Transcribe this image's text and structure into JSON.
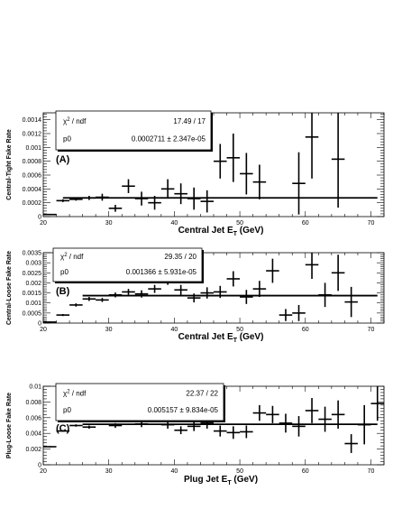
{
  "chart_data": [
    {
      "type": "scatter",
      "panel_tag": "(A)",
      "ylabel": "Central-Tight Fake Rate",
      "xlabel_main": "Central Jet E",
      "xlabel_sub": "T",
      "xlabel_unit": " (GeV)",
      "xlim": [
        20,
        72
      ],
      "ylim": [
        0,
        0.0015
      ],
      "xticks": [
        20,
        30,
        40,
        50,
        60,
        70
      ],
      "yticks": [
        0,
        0.0002,
        0.0004,
        0.0006,
        0.0008,
        0.001,
        0.0012,
        0.0014
      ],
      "ytick_labels": [
        "0",
        "0.0002",
        "0.0004",
        "0.0006",
        "0.0008",
        "0.001",
        "0.0012",
        "0.0014"
      ],
      "fit": {
        "p0": 0.0002711,
        "x_range": [
          23,
          71
        ]
      },
      "stats": {
        "chi2_label": "χ",
        "chi2_sup": "2",
        "chi2_rest": " / ndf",
        "chi2_value": "17.49 / 17",
        "p0_label": "p0",
        "p0_value": "0.0002711  ± 2.347e-05"
      },
      "points": [
        {
          "x": 21,
          "y": 3e-05,
          "xerr": 1,
          "yerr": 1e-05
        },
        {
          "x": 23,
          "y": 0.00023,
          "xerr": 1,
          "yerr": 2e-05
        },
        {
          "x": 25,
          "y": 0.00025,
          "xerr": 1,
          "yerr": 2e-05
        },
        {
          "x": 27,
          "y": 0.00027,
          "xerr": 1,
          "yerr": 3e-05
        },
        {
          "x": 29,
          "y": 0.00028,
          "xerr": 1,
          "yerr": 5e-05
        },
        {
          "x": 31,
          "y": 0.00012,
          "xerr": 1,
          "yerr": 5e-05
        },
        {
          "x": 33,
          "y": 0.00044,
          "xerr": 1,
          "yerr": 0.0001
        },
        {
          "x": 35,
          "y": 0.00026,
          "xerr": 1,
          "yerr": 0.0001
        },
        {
          "x": 37,
          "y": 0.0002,
          "xerr": 1,
          "yerr": 0.0001
        },
        {
          "x": 39,
          "y": 0.0004,
          "xerr": 1,
          "yerr": 0.00014
        },
        {
          "x": 41,
          "y": 0.00033,
          "xerr": 1,
          "yerr": 0.00015
        },
        {
          "x": 43,
          "y": 0.00026,
          "xerr": 1,
          "yerr": 0.00016
        },
        {
          "x": 45,
          "y": 0.00022,
          "xerr": 1,
          "yerr": 0.00016
        },
        {
          "x": 47,
          "y": 0.0008,
          "xerr": 1,
          "yerr": 0.00025
        },
        {
          "x": 49,
          "y": 0.00085,
          "xerr": 1,
          "yerr": 0.00035
        },
        {
          "x": 51,
          "y": 0.00062,
          "xerr": 1,
          "yerr": 0.0003
        },
        {
          "x": 53,
          "y": 0.0005,
          "xerr": 1,
          "yerr": 0.00025
        },
        {
          "x": 59,
          "y": 0.00048,
          "xerr": 1,
          "yerr": 0.00045
        },
        {
          "x": 61,
          "y": 0.00115,
          "xerr": 1,
          "yerr": 0.0006
        },
        {
          "x": 65,
          "y": 0.00083,
          "xerr": 1,
          "yerr": 0.0007
        }
      ]
    },
    {
      "type": "scatter",
      "panel_tag": "(B)",
      "ylabel": "Central-Loose Fake Rate",
      "xlabel_main": "Central Jet E",
      "xlabel_sub": "T",
      "xlabel_unit": " (GeV)",
      "xlim": [
        20,
        72
      ],
      "ylim": [
        0,
        0.0035
      ],
      "xticks": [
        20,
        30,
        40,
        50,
        60,
        70
      ],
      "yticks": [
        0,
        0.0005,
        0.001,
        0.0015,
        0.002,
        0.0025,
        0.003,
        0.0035
      ],
      "ytick_labels": [
        "0",
        "0.0005",
        "0.001",
        "0.0015",
        "0.002",
        "0.0025",
        "0.003",
        "0.0035"
      ],
      "fit": {
        "p0": 0.001366,
        "x_range": [
          26,
          71
        ]
      },
      "stats": {
        "chi2_label": "χ",
        "chi2_sup": "2",
        "chi2_rest": " / ndf",
        "chi2_value": "29.35 / 20",
        "p0_label": "p0",
        "p0_value": "0.001366  ± 5.931e-05"
      },
      "points": [
        {
          "x": 21,
          "y": 5e-05,
          "xerr": 1,
          "yerr": 3e-05
        },
        {
          "x": 23,
          "y": 0.0004,
          "xerr": 1,
          "yerr": 5e-05
        },
        {
          "x": 25,
          "y": 0.0009,
          "xerr": 1,
          "yerr": 8e-05
        },
        {
          "x": 27,
          "y": 0.0012,
          "xerr": 1,
          "yerr": 0.0001
        },
        {
          "x": 29,
          "y": 0.00115,
          "xerr": 1,
          "yerr": 0.0001
        },
        {
          "x": 31,
          "y": 0.0014,
          "xerr": 1,
          "yerr": 0.00012
        },
        {
          "x": 33,
          "y": 0.00155,
          "xerr": 1,
          "yerr": 0.00015
        },
        {
          "x": 35,
          "y": 0.00145,
          "xerr": 1,
          "yerr": 0.00018
        },
        {
          "x": 37,
          "y": 0.0017,
          "xerr": 1,
          "yerr": 0.0002
        },
        {
          "x": 39,
          "y": 0.00215,
          "xerr": 1,
          "yerr": 0.00025
        },
        {
          "x": 41,
          "y": 0.00165,
          "xerr": 1,
          "yerr": 0.00025
        },
        {
          "x": 43,
          "y": 0.00125,
          "xerr": 1,
          "yerr": 0.00022
        },
        {
          "x": 45,
          "y": 0.0015,
          "xerr": 1,
          "yerr": 0.00028
        },
        {
          "x": 47,
          "y": 0.00155,
          "xerr": 1,
          "yerr": 0.0003
        },
        {
          "x": 49,
          "y": 0.0022,
          "xerr": 1,
          "yerr": 0.00038
        },
        {
          "x": 51,
          "y": 0.0013,
          "xerr": 1,
          "yerr": 0.00035
        },
        {
          "x": 53,
          "y": 0.0017,
          "xerr": 1,
          "yerr": 0.0004
        },
        {
          "x": 55,
          "y": 0.0026,
          "xerr": 1,
          "yerr": 0.0006
        },
        {
          "x": 57,
          "y": 0.0004,
          "xerr": 1,
          "yerr": 0.0003
        },
        {
          "x": 59,
          "y": 0.0005,
          "xerr": 1,
          "yerr": 0.0004
        },
        {
          "x": 61,
          "y": 0.0029,
          "xerr": 1,
          "yerr": 0.0007
        },
        {
          "x": 63,
          "y": 0.0014,
          "xerr": 1,
          "yerr": 0.0006
        },
        {
          "x": 65,
          "y": 0.0025,
          "xerr": 1,
          "yerr": 0.0009
        },
        {
          "x": 67,
          "y": 0.00105,
          "xerr": 1,
          "yerr": 0.00075
        }
      ]
    },
    {
      "type": "scatter",
      "panel_tag": "(C)",
      "ylabel": "Plug-Loose Fake Rate",
      "xlabel_main": "Plug Jet E",
      "xlabel_sub": "T",
      "xlabel_unit": " (GeV)",
      "xlim": [
        20,
        72
      ],
      "ylim": [
        0,
        0.01
      ],
      "xticks": [
        20,
        30,
        40,
        50,
        60,
        70
      ],
      "yticks": [
        0,
        0.002,
        0.004,
        0.006,
        0.008,
        0.01
      ],
      "ytick_labels": [
        "0",
        "0.002",
        "0.004",
        "0.006",
        "0.008",
        "0.01"
      ],
      "fit": {
        "p0": 0.005157,
        "x_range": [
          26,
          71
        ]
      },
      "stats": {
        "chi2_label": "χ",
        "chi2_sup": "2",
        "chi2_rest": " / ndf",
        "chi2_value": "22.37 / 22",
        "p0_label": "p0",
        "p0_value": "0.005157  ± 9.834e-05"
      },
      "points": [
        {
          "x": 21,
          "y": 0.0023,
          "xerr": 1,
          "yerr": 8e-05
        },
        {
          "x": 23,
          "y": 0.0043,
          "xerr": 1,
          "yerr": 0.0001
        },
        {
          "x": 25,
          "y": 0.005,
          "xerr": 1,
          "yerr": 0.00015
        },
        {
          "x": 27,
          "y": 0.0048,
          "xerr": 1,
          "yerr": 0.0002
        },
        {
          "x": 29,
          "y": 0.0057,
          "xerr": 1,
          "yerr": 0.00025
        },
        {
          "x": 31,
          "y": 0.005,
          "xerr": 1,
          "yerr": 0.0003
        },
        {
          "x": 33,
          "y": 0.0058,
          "xerr": 1,
          "yerr": 0.0004
        },
        {
          "x": 35,
          "y": 0.0052,
          "xerr": 1,
          "yerr": 0.0004
        },
        {
          "x": 37,
          "y": 0.0059,
          "xerr": 1,
          "yerr": 0.0005
        },
        {
          "x": 39,
          "y": 0.0051,
          "xerr": 1,
          "yerr": 0.0005
        },
        {
          "x": 41,
          "y": 0.0044,
          "xerr": 1,
          "yerr": 0.0005
        },
        {
          "x": 43,
          "y": 0.0049,
          "xerr": 1,
          "yerr": 0.0006
        },
        {
          "x": 45,
          "y": 0.0053,
          "xerr": 1,
          "yerr": 0.0007
        },
        {
          "x": 47,
          "y": 0.0043,
          "xerr": 1,
          "yerr": 0.0007
        },
        {
          "x": 49,
          "y": 0.0041,
          "xerr": 1,
          "yerr": 0.0008
        },
        {
          "x": 51,
          "y": 0.0042,
          "xerr": 1,
          "yerr": 0.0008
        },
        {
          "x": 53,
          "y": 0.0066,
          "xerr": 1,
          "yerr": 0.001
        },
        {
          "x": 55,
          "y": 0.0064,
          "xerr": 1,
          "yerr": 0.0011
        },
        {
          "x": 57,
          "y": 0.0053,
          "xerr": 1,
          "yerr": 0.0012
        },
        {
          "x": 59,
          "y": 0.0049,
          "xerr": 1,
          "yerr": 0.0013
        },
        {
          "x": 61,
          "y": 0.0069,
          "xerr": 1,
          "yerr": 0.0016
        },
        {
          "x": 63,
          "y": 0.0058,
          "xerr": 1,
          "yerr": 0.0016
        },
        {
          "x": 65,
          "y": 0.0064,
          "xerr": 1,
          "yerr": 0.0018
        },
        {
          "x": 67,
          "y": 0.0027,
          "xerr": 1,
          "yerr": 0.0012
        },
        {
          "x": 69,
          "y": 0.0051,
          "xerr": 1,
          "yerr": 0.0025
        },
        {
          "x": 71,
          "y": 0.0078,
          "xerr": 1,
          "yerr": 0.0022
        }
      ]
    }
  ]
}
